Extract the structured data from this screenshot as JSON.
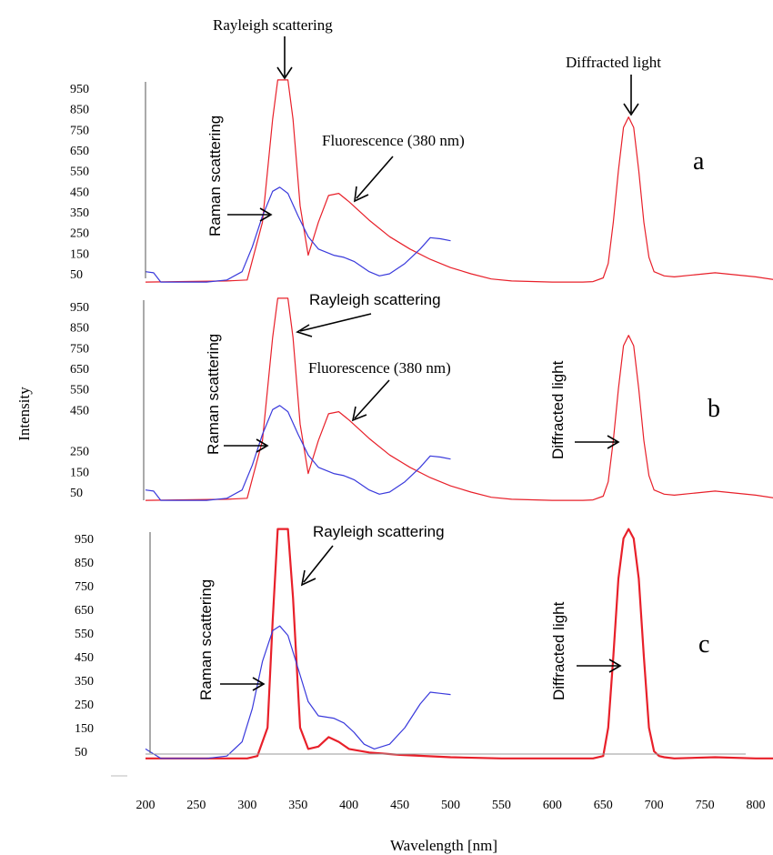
{
  "chart_data": [
    {
      "type": "line",
      "panel_label": "a",
      "y_ticks": [
        50,
        150,
        250,
        350,
        450,
        550,
        650,
        750,
        850,
        950
      ],
      "series": [
        {
          "color": "#e8202a",
          "x": [
            200,
            280,
            300,
            315,
            325,
            330,
            340,
            345,
            352,
            360,
            370,
            380,
            390,
            400,
            420,
            440,
            460,
            480,
            500,
            520,
            540,
            560,
            600,
            630,
            640,
            650,
            655,
            660,
            665,
            670,
            675,
            680,
            685,
            690,
            695,
            700,
            710,
            720,
            740,
            760,
            780,
            800,
            820
          ],
          "y": [
            10,
            15,
            20,
            300,
            800,
            990,
            990,
            800,
            380,
            140,
            300,
            430,
            440,
            400,
            310,
            230,
            170,
            120,
            80,
            50,
            25,
            15,
            10,
            10,
            12,
            30,
            100,
            300,
            550,
            760,
            810,
            760,
            550,
            300,
            130,
            60,
            40,
            35,
            45,
            55,
            45,
            35,
            20
          ]
        },
        {
          "color": "#3a3adc",
          "x": [
            200,
            208,
            215,
            260,
            280,
            295,
            305,
            315,
            325,
            332,
            340,
            350,
            360,
            370,
            385,
            395,
            405,
            420,
            430,
            440,
            455,
            470,
            480,
            490,
            500
          ],
          "y": [
            60,
            55,
            10,
            10,
            20,
            60,
            180,
            330,
            450,
            470,
            440,
            330,
            230,
            170,
            140,
            130,
            110,
            60,
            40,
            50,
            100,
            170,
            225,
            220,
            210
          ]
        }
      ],
      "annotations": [
        "Rayleigh scattering",
        "Diffracted light",
        "Raman scattering",
        "Fluorescence (380 nm)"
      ]
    },
    {
      "type": "line",
      "panel_label": "b",
      "y_ticks": [
        50,
        150,
        250,
        450,
        550,
        650,
        750,
        850,
        950
      ],
      "series": [
        {
          "color": "#e8202a",
          "x": [
            200,
            280,
            300,
            315,
            325,
            330,
            340,
            345,
            352,
            360,
            370,
            380,
            390,
            400,
            420,
            440,
            460,
            480,
            500,
            520,
            540,
            560,
            600,
            630,
            640,
            650,
            655,
            660,
            665,
            670,
            675,
            680,
            685,
            690,
            695,
            700,
            710,
            720,
            740,
            760,
            780,
            800,
            820
          ],
          "y": [
            10,
            15,
            20,
            300,
            800,
            990,
            990,
            800,
            380,
            140,
            300,
            430,
            440,
            400,
            310,
            230,
            170,
            120,
            80,
            50,
            25,
            15,
            10,
            10,
            12,
            30,
            100,
            300,
            550,
            760,
            810,
            760,
            550,
            300,
            130,
            60,
            40,
            35,
            45,
            55,
            45,
            35,
            20
          ]
        },
        {
          "color": "#3a3adc",
          "x": [
            200,
            208,
            215,
            260,
            280,
            295,
            305,
            315,
            325,
            332,
            340,
            350,
            360,
            370,
            385,
            395,
            405,
            420,
            430,
            440,
            455,
            470,
            480,
            490,
            500
          ],
          "y": [
            60,
            55,
            10,
            10,
            20,
            60,
            180,
            330,
            450,
            470,
            440,
            330,
            230,
            170,
            140,
            130,
            110,
            60,
            40,
            50,
            100,
            170,
            225,
            220,
            210
          ]
        }
      ],
      "annotations": [
        "Rayleigh scattering",
        "Fluorescence (380 nm)",
        "Raman scattering",
        "Diffracted  light"
      ]
    },
    {
      "type": "line",
      "panel_label": "c",
      "y_ticks": [
        50,
        150,
        250,
        350,
        450,
        550,
        650,
        750,
        850,
        950
      ],
      "series": [
        {
          "color": "#e8202a",
          "x": [
            200,
            280,
            300,
            310,
            320,
            325,
            330,
            340,
            345,
            352,
            360,
            370,
            380,
            390,
            400,
            420,
            450,
            500,
            550,
            600,
            640,
            650,
            655,
            660,
            665,
            670,
            675,
            680,
            685,
            690,
            695,
            700,
            705,
            710,
            720,
            760,
            800,
            820
          ],
          "y": [
            20,
            20,
            20,
            30,
            150,
            600,
            990,
            990,
            700,
            150,
            60,
            70,
            110,
            90,
            60,
            45,
            35,
            25,
            20,
            20,
            20,
            30,
            150,
            450,
            780,
            950,
            990,
            950,
            780,
            450,
            150,
            50,
            30,
            25,
            20,
            25,
            20,
            20
          ]
        },
        {
          "color": "#3a3adc",
          "x": [
            200,
            215,
            260,
            280,
            295,
            305,
            315,
            325,
            332,
            340,
            350,
            360,
            370,
            385,
            395,
            405,
            415,
            425,
            440,
            455,
            470,
            480,
            490,
            500
          ],
          "y": [
            60,
            20,
            20,
            30,
            90,
            230,
            430,
            560,
            580,
            540,
            400,
            260,
            200,
            190,
            170,
            130,
            80,
            60,
            80,
            150,
            250,
            300,
            295,
            290
          ]
        }
      ],
      "annotations": [
        "Rayleigh scattering",
        "Diffracted  light",
        "Raman scattering"
      ]
    }
  ],
  "x_ticks": [
    200,
    250,
    300,
    350,
    400,
    450,
    500,
    550,
    600,
    650,
    700,
    750,
    800
  ],
  "xlabel": "Wavelength [nm]",
  "ylabel": "Intensity",
  "xlim": [
    200,
    820
  ],
  "ylim": [
    0,
    1000
  ]
}
